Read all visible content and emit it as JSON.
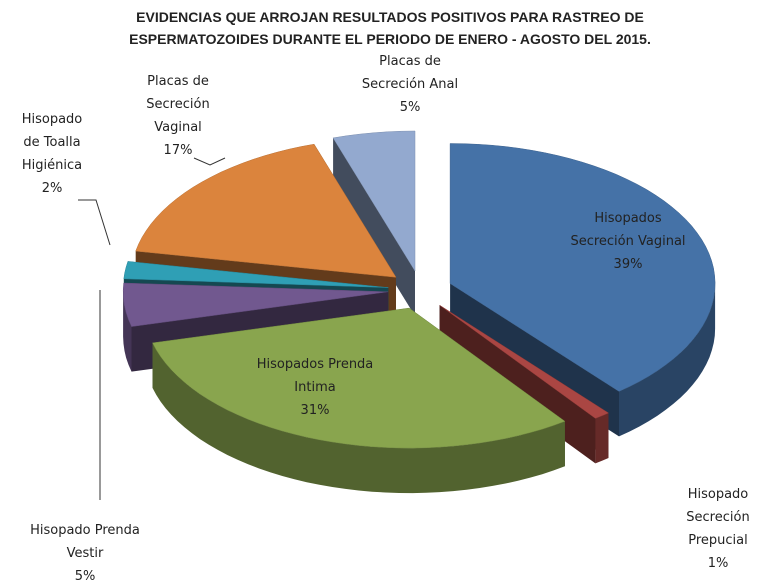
{
  "chart_data": {
    "type": "pie3d",
    "title": "EVIDENCIAS QUE ARROJAN RESULTADOS POSITIVOS PARA RASTREO DE\nESPERMATOZOIDES DURANTE EL PERIODO DE ENERO - AGOSTO DEL 2015.",
    "categories": [
      "Hisopados\nSecreción Vaginal",
      "Hisopado\nSecreción\nPrepucial",
      "Hisopados Prenda\nIntima",
      "Hisopado Prenda\nVestir",
      "Hisopado\nde Toalla\nHigiénica",
      "Placas de\nSecreción\nVaginal",
      "Placas de\nSecreción Anal"
    ],
    "values": [
      39,
      1,
      31,
      5,
      2,
      17,
      5
    ],
    "value_labels": [
      "39%",
      "1%",
      "31%",
      "5%",
      "2%",
      "17%",
      "5%"
    ],
    "colors": [
      "#4572a7",
      "#aa4643",
      "#89a54e",
      "#71588f",
      "#2f9fb5",
      "#db843d",
      "#93a9cf"
    ]
  }
}
